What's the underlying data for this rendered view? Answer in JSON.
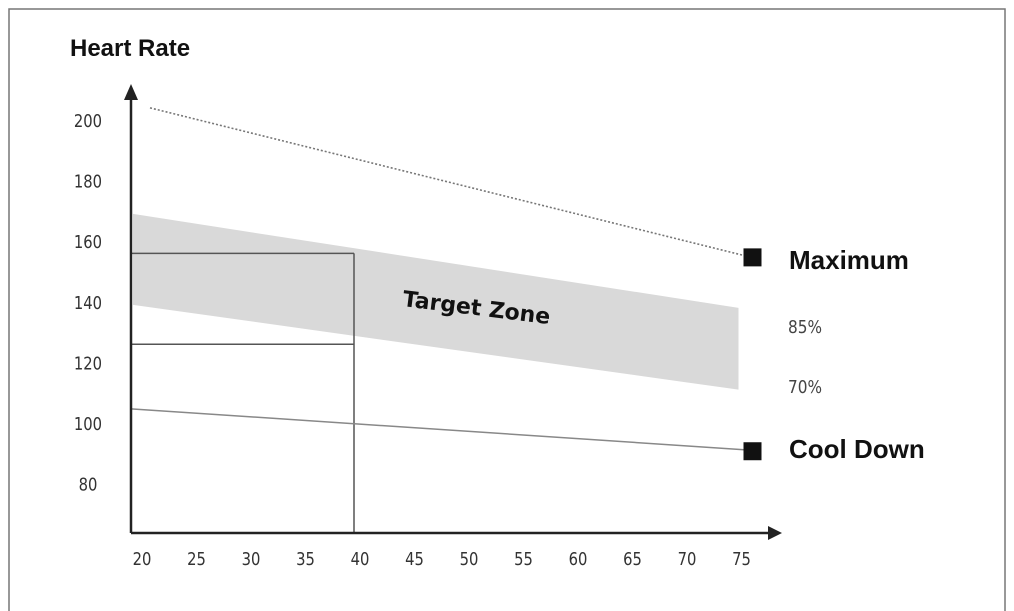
{
  "chart_data": {
    "type": "line",
    "title": "Heart Rate",
    "xlabel": "",
    "ylabel": "Heart Rate",
    "x_ticks": [
      20,
      25,
      30,
      35,
      40,
      45,
      50,
      55,
      60,
      65,
      70,
      75
    ],
    "y_ticks": [
      80,
      100,
      120,
      140,
      160,
      180,
      200
    ],
    "xlim": [
      20,
      77
    ],
    "ylim": [
      65,
      210
    ],
    "series": [
      {
        "name": "Maximum",
        "style": "dotted",
        "x": [
          20,
          75
        ],
        "y": [
          205,
          154
        ]
      },
      {
        "name": "Cool Down",
        "style": "solid",
        "x": [
          20,
          75
        ],
        "y": [
          106,
          92
        ]
      }
    ],
    "zone": {
      "label": "Target Zone",
      "x": [
        20,
        75
      ],
      "upper": [
        169,
        138
      ],
      "lower": [
        139,
        111
      ],
      "upper_label": "85%",
      "lower_label": "70%"
    },
    "guides": {
      "x": 40,
      "y_upper": 156,
      "y_lower": 126
    },
    "colors": {
      "zone": "#d9d9d9",
      "line": "#555555",
      "marker": "#111111",
      "frame": "#777777"
    }
  }
}
